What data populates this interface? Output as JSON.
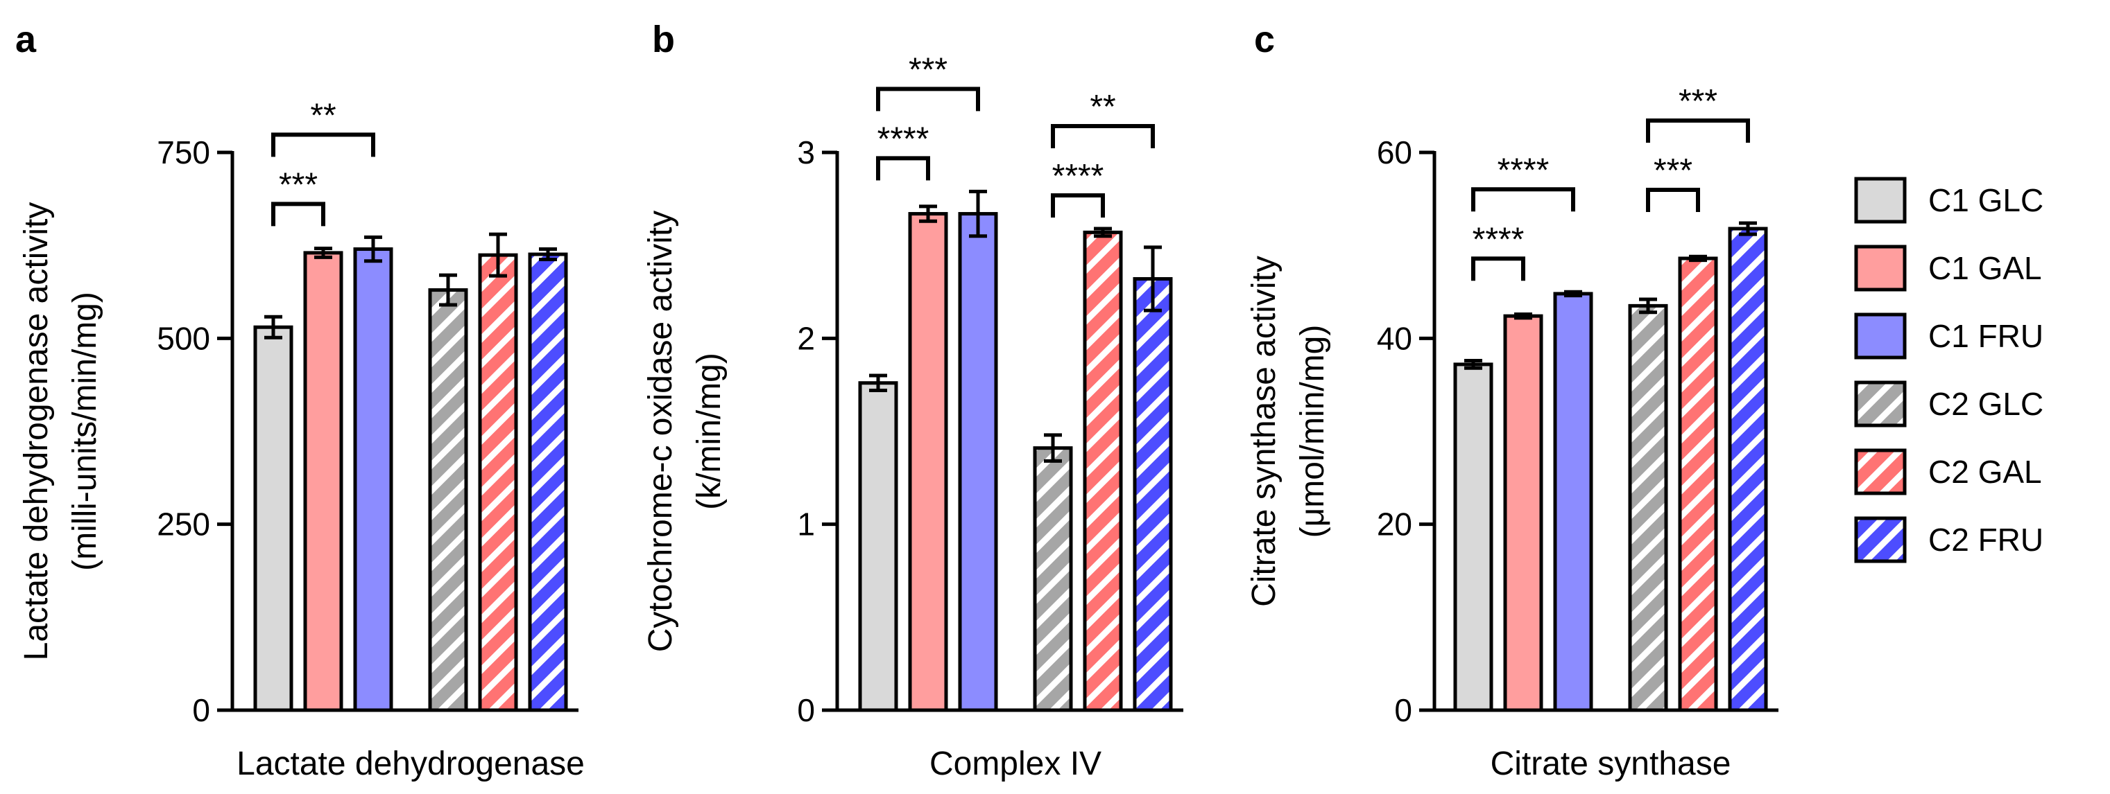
{
  "legend": {
    "items": [
      {
        "label": "C1 GLC",
        "color": "#d9d9d9",
        "hatched": false
      },
      {
        "label": "C1 GAL",
        "color": "#ff9e9e",
        "hatched": false
      },
      {
        "label": "C1 FRU",
        "color": "#8c8cff",
        "hatched": false
      },
      {
        "label": "C2 GLC",
        "color": "#a6a6a6",
        "hatched": true
      },
      {
        "label": "C2 GAL",
        "color": "#ff7373",
        "hatched": true
      },
      {
        "label": "C2 FRU",
        "color": "#4d4dff",
        "hatched": true
      }
    ]
  },
  "chart_data": [
    {
      "panel": "a",
      "type": "bar",
      "category": "Lactate dehydrogenase",
      "ylabel_line1": "Lactate dehydrogenase activity",
      "ylabel_line2": "(milli-units/min/mg)",
      "ylim": [
        0,
        750
      ],
      "yticks": [
        0,
        250,
        500,
        750
      ],
      "series": [
        {
          "name": "C1 GLC",
          "value": 515,
          "error": 14
        },
        {
          "name": "C1 GAL",
          "value": 615,
          "error": 6
        },
        {
          "name": "C1 FRU",
          "value": 620,
          "error": 16
        },
        {
          "name": "C2 GLC",
          "value": 565,
          "error": 20
        },
        {
          "name": "C2 GAL",
          "value": 612,
          "error": 28
        },
        {
          "name": "C2 FRU",
          "value": 613,
          "error": 7
        }
      ],
      "significance": [
        {
          "from": 0,
          "to": 1,
          "label": "***",
          "level": 1
        },
        {
          "from": 0,
          "to": 2,
          "label": "**",
          "level": 2
        }
      ]
    },
    {
      "panel": "b",
      "type": "bar",
      "category": "Complex IV",
      "ylabel_line1": "Cytochrome-c oxidase activity",
      "ylabel_line2": "(k/min/mg)",
      "ylim": [
        0,
        3
      ],
      "yticks": [
        0,
        1,
        2,
        3
      ],
      "series": [
        {
          "name": "C1 GLC",
          "value": 1.76,
          "error": 0.04
        },
        {
          "name": "C1 GAL",
          "value": 2.67,
          "error": 0.04
        },
        {
          "name": "C1 FRU",
          "value": 2.67,
          "error": 0.12
        },
        {
          "name": "C2 GLC",
          "value": 1.41,
          "error": 0.07
        },
        {
          "name": "C2 GAL",
          "value": 2.57,
          "error": 0.02
        },
        {
          "name": "C2 FRU",
          "value": 2.32,
          "error": 0.17
        }
      ],
      "significance": [
        {
          "from": 0,
          "to": 1,
          "label": "****",
          "level": 1
        },
        {
          "from": 0,
          "to": 2,
          "label": "***",
          "level": 2
        },
        {
          "from": 3,
          "to": 4,
          "label": "****",
          "level": 1
        },
        {
          "from": 3,
          "to": 5,
          "label": "**",
          "level": 2
        }
      ]
    },
    {
      "panel": "c",
      "type": "bar",
      "category": "Citrate synthase",
      "ylabel_line1": "Citrate synthase activity",
      "ylabel_line2": "(μmol/min/mg)",
      "ylim": [
        0,
        60
      ],
      "yticks": [
        0,
        20,
        40,
        60
      ],
      "series": [
        {
          "name": "C1 GLC",
          "value": 37.2,
          "error": 0.4
        },
        {
          "name": "C1 GAL",
          "value": 42.4,
          "error": 0.2
        },
        {
          "name": "C1 FRU",
          "value": 44.8,
          "error": 0.2
        },
        {
          "name": "C2 GLC",
          "value": 43.5,
          "error": 0.7
        },
        {
          "name": "C2 GAL",
          "value": 48.6,
          "error": 0.2
        },
        {
          "name": "C2 FRU",
          "value": 51.8,
          "error": 0.6
        }
      ],
      "significance": [
        {
          "from": 0,
          "to": 1,
          "label": "****",
          "level": 1
        },
        {
          "from": 0,
          "to": 2,
          "label": "****",
          "level": 2
        },
        {
          "from": 3,
          "to": 4,
          "label": "***",
          "level": 1
        },
        {
          "from": 3,
          "to": 5,
          "label": "***",
          "level": 2
        }
      ]
    }
  ]
}
